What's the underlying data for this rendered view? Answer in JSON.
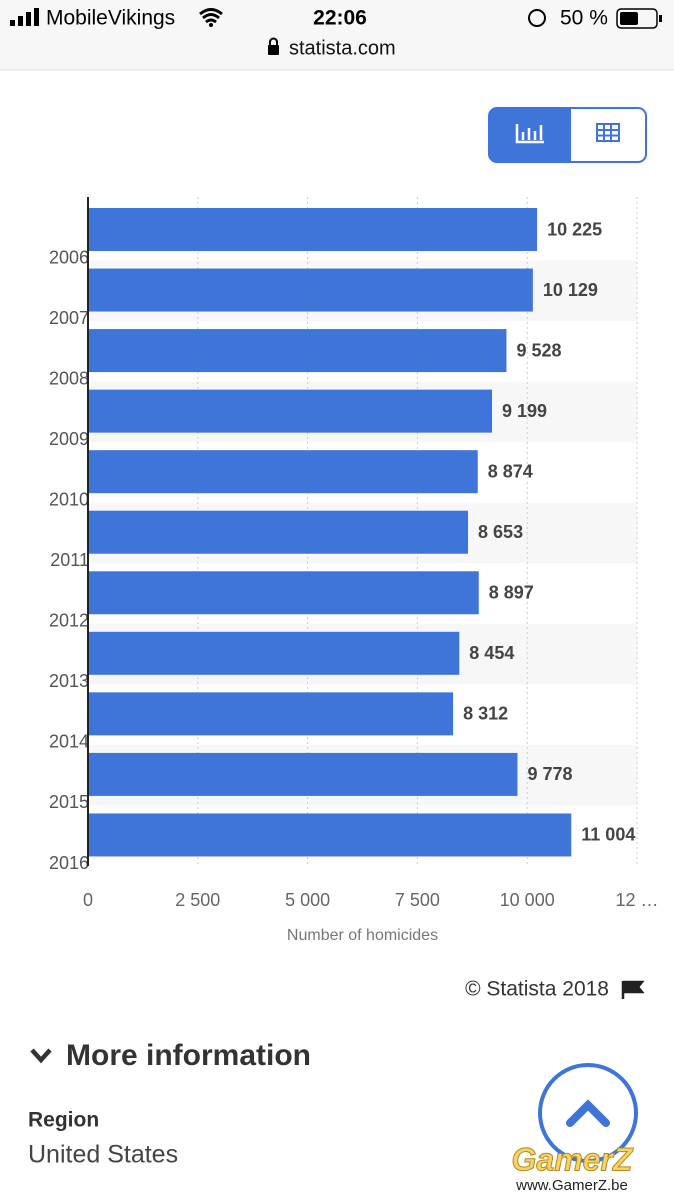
{
  "status_bar": {
    "carrier": "MobileVikings",
    "time": "22:06",
    "battery": "50 %",
    "url": "statista.com"
  },
  "chart_data": {
    "type": "bar",
    "orientation": "horizontal",
    "categories": [
      "2006",
      "2007",
      "2008",
      "2009",
      "2010",
      "2011",
      "2012",
      "2013",
      "2014",
      "2015",
      "2016"
    ],
    "values": [
      10225,
      10129,
      9528,
      9199,
      8874,
      8653,
      8897,
      8454,
      8312,
      9778,
      11004
    ],
    "value_labels": [
      "10 225",
      "10 129",
      "9 528",
      "9 199",
      "8 874",
      "8 653",
      "8 897",
      "8 454",
      "8 312",
      "9 778",
      "11 004"
    ],
    "color": "#3f74d9",
    "xlabel": "Number of homicides",
    "xlim": [
      0,
      12500
    ],
    "xticks": [
      0,
      {
        "value": 2500,
        "label": "2 500"
      },
      {
        "value": 5000,
        "label": "5 000"
      },
      {
        "value": 7500,
        "label": "7 500"
      },
      {
        "value": 10000,
        "label": "10 000"
      },
      {
        "value": 12500,
        "label": "12 …"
      }
    ],
    "grid": true
  },
  "credit": "© Statista 2018",
  "more_info": {
    "heading": "More information",
    "region_label": "Region",
    "region_value": "United States"
  },
  "watermark": {
    "logo": "GamerZ",
    "url": "www.GamerZ.be"
  }
}
